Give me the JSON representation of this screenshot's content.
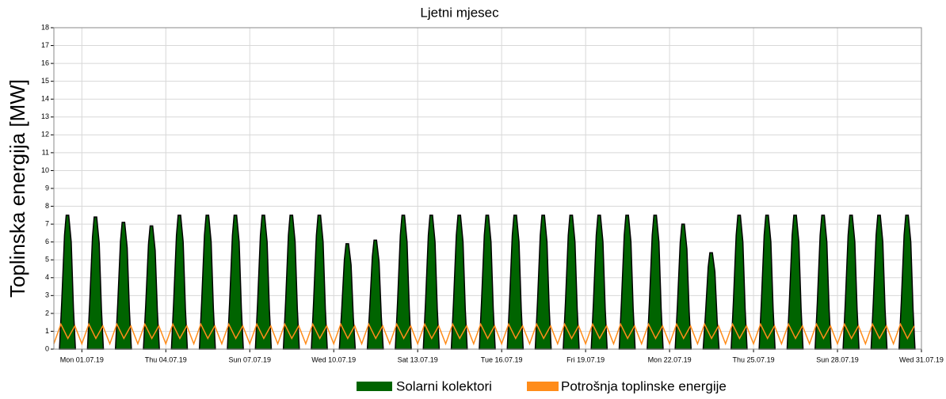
{
  "chart_data": {
    "type": "area-line",
    "title": "Ljetni mjesec",
    "y_label": "Toplinska energija [MW]",
    "ylim": [
      0,
      18
    ],
    "yticks": [
      0,
      1,
      2,
      3,
      4,
      5,
      6,
      7,
      8,
      9,
      10,
      11,
      12,
      13,
      14,
      15,
      16,
      17,
      18
    ],
    "xlim": [
      -1,
      30
    ],
    "xticks": [
      {
        "value": 0,
        "label": "Mon 01.07.19"
      },
      {
        "value": 3,
        "label": "Thu 04.07.19"
      },
      {
        "value": 6,
        "label": "Sun 07.07.19"
      },
      {
        "value": 9,
        "label": "Wed 10.07.19"
      },
      {
        "value": 12,
        "label": "Sat 13.07.19"
      },
      {
        "value": 15,
        "label": "Tue 16.07.19"
      },
      {
        "value": 18,
        "label": "Fri 19.07.19"
      },
      {
        "value": 21,
        "label": "Mon 22.07.19"
      },
      {
        "value": 24,
        "label": "Thu 25.07.19"
      },
      {
        "value": 27,
        "label": "Sun 28.07.19"
      },
      {
        "value": 30,
        "label": "Wed 31.07.19"
      }
    ],
    "grid": true,
    "series": [
      {
        "name": "Solarni kolektori",
        "color": "#006400",
        "x": [
          -0.5,
          0.5,
          1.5,
          2.5,
          3.5,
          4.5,
          5.5,
          6.5,
          7.5,
          8.5,
          9.5,
          10.5,
          11.5,
          12.5,
          13.5,
          14.5,
          15.5,
          16.5,
          17.5,
          18.5,
          19.5,
          20.5,
          21.5,
          22.5,
          23.5,
          24.5,
          25.5,
          26.5,
          27.5,
          28.5,
          29.5
        ],
        "values": [
          7.5,
          7.4,
          7.1,
          6.9,
          7.5,
          7.5,
          7.5,
          7.5,
          7.5,
          7.5,
          5.9,
          6.1,
          7.5,
          7.5,
          7.5,
          7.5,
          7.5,
          7.5,
          7.5,
          7.5,
          7.5,
          7.5,
          7.0,
          5.4,
          7.5,
          7.5,
          7.5,
          7.5,
          7.5,
          7.5,
          7.5
        ]
      },
      {
        "name": "Potrošnja toplinske energije",
        "color": "#ff8c1a",
        "x": [
          -1,
          -0.75,
          -0.5,
          -0.25,
          0,
          0.25,
          0.5,
          0.75,
          1,
          1.25,
          1.5,
          1.75,
          2,
          2.25,
          2.5,
          2.75,
          3,
          3.25,
          3.5,
          3.75,
          4,
          4.25,
          4.5,
          4.75,
          5,
          5.25,
          5.5,
          5.75,
          6,
          6.25,
          6.5,
          6.75,
          7,
          7.25,
          7.5,
          7.75,
          8,
          8.25,
          8.5,
          8.75,
          9,
          9.25,
          9.5,
          9.75,
          10,
          10.25,
          10.5,
          10.75,
          11,
          11.25,
          11.5,
          11.75,
          12,
          12.25,
          12.5,
          12.75,
          13,
          13.25,
          13.5,
          13.75,
          14,
          14.25,
          14.5,
          14.75,
          15,
          15.25,
          15.5,
          15.75,
          16,
          16.25,
          16.5,
          16.75,
          17,
          17.25,
          17.5,
          17.75,
          18,
          18.25,
          18.5,
          18.75,
          19,
          19.25,
          19.5,
          19.75,
          20,
          20.25,
          20.5,
          20.75,
          21,
          21.25,
          21.5,
          21.75,
          22,
          22.25,
          22.5,
          22.75,
          23,
          23.25,
          23.5,
          23.75,
          24,
          24.25,
          24.5,
          24.75,
          25,
          25.25,
          25.5,
          25.75,
          26,
          26.25,
          26.5,
          26.75,
          27,
          27.25,
          27.5,
          27.75,
          28,
          28.25,
          28.5,
          28.75,
          29,
          29.25,
          29.5,
          29.75
        ],
        "values": [
          0.3,
          1.4,
          0.6,
          1.3,
          0.3,
          1.4,
          0.6,
          1.3,
          0.3,
          1.4,
          0.6,
          1.3,
          0.3,
          1.4,
          0.6,
          1.3,
          0.3,
          1.4,
          0.6,
          1.3,
          0.3,
          1.4,
          0.6,
          1.3,
          0.3,
          1.4,
          0.6,
          1.3,
          0.3,
          1.4,
          0.6,
          1.3,
          0.3,
          1.4,
          0.6,
          1.3,
          0.3,
          1.4,
          0.6,
          1.3,
          0.3,
          1.4,
          0.6,
          1.3,
          0.3,
          1.4,
          0.6,
          1.3,
          0.3,
          1.4,
          0.6,
          1.3,
          0.3,
          1.4,
          0.6,
          1.3,
          0.3,
          1.4,
          0.6,
          1.3,
          0.3,
          1.4,
          0.6,
          1.3,
          0.3,
          1.4,
          0.6,
          1.3,
          0.3,
          1.4,
          0.6,
          1.3,
          0.3,
          1.4,
          0.6,
          1.3,
          0.3,
          1.4,
          0.6,
          1.3,
          0.3,
          1.4,
          0.6,
          1.3,
          0.3,
          1.4,
          0.6,
          1.3,
          0.3,
          1.4,
          0.6,
          1.3,
          0.3,
          1.4,
          0.6,
          1.3,
          0.3,
          1.4,
          0.6,
          1.3,
          0.3,
          1.4,
          0.6,
          1.3,
          0.3,
          1.4,
          0.6,
          1.3,
          0.3,
          1.4,
          0.6,
          1.3,
          0.3,
          1.4,
          0.6,
          1.3,
          0.3,
          1.4,
          0.6,
          1.3,
          0.3,
          1.4,
          0.6,
          1.3
        ]
      }
    ]
  }
}
